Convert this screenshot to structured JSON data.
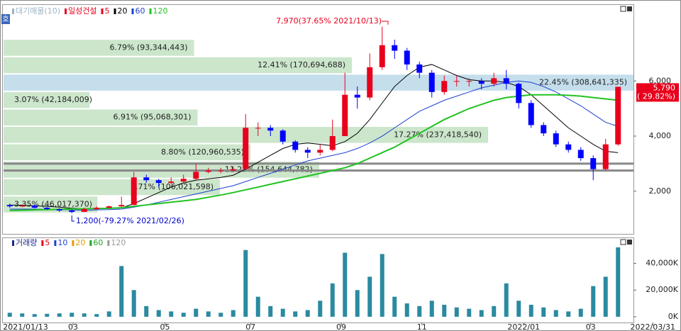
{
  "chart_data": [
    {
      "type": "candlestick",
      "icon_label": "호",
      "legend": [
        {
          "label": "대기매물(10)",
          "color": "#9cb4c4"
        },
        {
          "label": "일성건설",
          "color": "#e8001c"
        },
        {
          "label": "5",
          "color": "#e8001c"
        },
        {
          "label": "20",
          "color": "#000000"
        },
        {
          "label": "60",
          "color": "#1f3fd0"
        },
        {
          "label": "120",
          "color": "#22c322"
        }
      ],
      "categories": [
        null,
        null,
        null,
        null,
        null,
        null,
        null,
        null,
        null,
        null,
        null,
        null,
        null,
        null,
        null,
        null,
        null,
        null,
        null,
        null,
        null,
        null,
        null,
        null,
        null,
        null,
        null,
        null,
        null,
        null,
        null,
        null,
        null,
        null,
        null,
        null,
        null,
        null,
        null,
        null,
        null,
        null,
        null,
        null,
        null,
        null,
        null,
        null,
        null,
        null
      ],
      "candles": [
        [
          1500,
          1550,
          1400,
          1450
        ],
        [
          1450,
          1520,
          1420,
          1480
        ],
        [
          1480,
          1500,
          1380,
          1400
        ],
        [
          1400,
          1420,
          1320,
          1350
        ],
        [
          1350,
          1380,
          1250,
          1300
        ],
        [
          1300,
          1330,
          1200,
          1250
        ],
        [
          1250,
          1400,
          1240,
          1350
        ],
        [
          1350,
          1450,
          1330,
          1400
        ],
        [
          1400,
          1480,
          1380,
          1450
        ],
        [
          1450,
          1800,
          1420,
          1500
        ],
        [
          1500,
          2700,
          1500,
          2500
        ],
        [
          2500,
          2600,
          2300,
          2400
        ],
        [
          2400,
          2450,
          2150,
          2300
        ],
        [
          2300,
          2500,
          2250,
          2350
        ],
        [
          2350,
          2600,
          2300,
          2450
        ],
        [
          2450,
          3000,
          2400,
          2700
        ],
        [
          2700,
          2850,
          2650,
          2750
        ],
        [
          2750,
          2850,
          2650,
          2750
        ],
        [
          2750,
          2900,
          2700,
          2800
        ],
        [
          2800,
          4800,
          2800,
          4300
        ],
        [
          4300,
          4500,
          4000,
          4300
        ],
        [
          4300,
          4400,
          4000,
          4200
        ],
        [
          4200,
          4250,
          3700,
          3800
        ],
        [
          3800,
          3850,
          3400,
          3500
        ],
        [
          3500,
          3600,
          3200,
          3400
        ],
        [
          3400,
          3700,
          3300,
          3500
        ],
        [
          3500,
          4600,
          3450,
          4000
        ],
        [
          4000,
          6300,
          4000,
          5500
        ],
        [
          5500,
          5800,
          5000,
          5400
        ],
        [
          5400,
          7000,
          5300,
          6500
        ],
        [
          6500,
          7970,
          6400,
          7300
        ],
        [
          7300,
          7500,
          6800,
          7100
        ],
        [
          7100,
          7200,
          6400,
          6600
        ],
        [
          6600,
          6700,
          6100,
          6300
        ],
        [
          6300,
          6400,
          5400,
          5600
        ],
        [
          5600,
          6200,
          5500,
          6000
        ],
        [
          6000,
          6200,
          5800,
          6000
        ],
        [
          6000,
          6100,
          5800,
          6000
        ],
        [
          6000,
          6100,
          5700,
          5900
        ],
        [
          5900,
          6300,
          5800,
          6100
        ],
        [
          6100,
          6400,
          5700,
          5900
        ],
        [
          5900,
          5950,
          5000,
          5200
        ],
        [
          5200,
          5300,
          4300,
          4400
        ],
        [
          4400,
          4500,
          4000,
          4100
        ],
        [
          4100,
          4200,
          3600,
          3700
        ],
        [
          3700,
          3800,
          3400,
          3500
        ],
        [
          3500,
          3600,
          3100,
          3200
        ],
        [
          3200,
          3300,
          2400,
          2800
        ],
        [
          2800,
          3900,
          2750,
          3700
        ],
        [
          3700,
          5790,
          3650,
          5790
        ]
      ],
      "up_color": "#e8001c",
      "down_color": "#0000ff",
      "series": [
        {
          "color": "#000000",
          "values": [
            1500,
            1490,
            1470,
            1450,
            1420,
            1380,
            1360,
            1360,
            1370,
            1390,
            1550,
            1750,
            1950,
            2150,
            2300,
            2400,
            2450,
            2500,
            2580,
            2800,
            3050,
            3300,
            3550,
            3700,
            3750,
            3700,
            3650,
            3800,
            4100,
            4600,
            5200,
            5800,
            6200,
            6500,
            6600,
            6400,
            6200,
            6050,
            6000,
            6000,
            5950,
            5800,
            5500,
            5100,
            4700,
            4300,
            4000,
            3700,
            3450,
            3400
          ]
        },
        {
          "color": "#1f3fd0",
          "values": [
            1350,
            1350,
            1350,
            1340,
            1330,
            1320,
            1310,
            1320,
            1330,
            1350,
            1420,
            1500,
            1600,
            1700,
            1800,
            1900,
            2000,
            2100,
            2200,
            2350,
            2500,
            2650,
            2800,
            2950,
            3100,
            3200,
            3300,
            3400,
            3550,
            3750,
            4000,
            4300,
            4600,
            4900,
            5100,
            5300,
            5450,
            5600,
            5750,
            5850,
            5950,
            6000,
            5950,
            5800,
            5600,
            5350,
            5100,
            4800,
            4500,
            4350
          ]
        },
        {
          "color": "#22c322",
          "values": [
            1300,
            1310,
            1320,
            1330,
            1340,
            1350,
            1360,
            1370,
            1380,
            1400,
            1450,
            1500,
            1550,
            1600,
            1650,
            1700,
            1780,
            1860,
            1950,
            2050,
            2150,
            2250,
            2350,
            2450,
            2550,
            2650,
            2750,
            2850,
            3000,
            3200,
            3400,
            3600,
            3850,
            4100,
            4350,
            4600,
            4800,
            5000,
            5150,
            5300,
            5400,
            5450,
            5500,
            5500,
            5500,
            5480,
            5450,
            5400,
            5350,
            5300
          ]
        }
      ],
      "profile": {
        "bins": [
          1200,
          1832,
          2464,
          3096,
          3728,
          4360,
          4992,
          5624,
          6256,
          6888,
          7520
        ],
        "values": [
          46017370,
          106021598,
          154644782,
          120960535,
          237418540,
          95068301,
          42184009,
          308641335,
          170694688,
          93344443
        ],
        "value_labels": [
          "3.35% (46,017,370)",
          "7.71% (106,021,598)",
          "11.25% (154,644,782)",
          "8.80% (120,960,535)",
          "17.27% (237,418,540)",
          "6.91% (95,068,301)",
          "3.07% (42,184,009)",
          "22.45% (308,641,335)",
          "12.41% (170,694,688)",
          "6.79% (93,344,443)"
        ],
        "color": "#cce6cc",
        "highlight_color": "#c4deec"
      },
      "hlines": [
        3000,
        2750
      ],
      "annotations": [
        {
          "text": "7,970(37.65% 2021/10/13)",
          "color": "#e8001c"
        },
        {
          "text": "1,200(-79.27% 2021/02/26)",
          "color": "#0000cc"
        }
      ],
      "last_price": {
        "label": "5,790",
        "change_label": "( 29.82%)",
        "value": 5790
      },
      "ylim": [
        450,
        8760
      ],
      "yticks": [
        {
          "value": 2000,
          "label": "2,000"
        },
        {
          "value": 4000,
          "label": "4,000"
        },
        {
          "value": 6000,
          "label": "6,000"
        }
      ]
    },
    {
      "type": "bar",
      "legend": [
        {
          "label": "거래량",
          "color": "#1a2a8a"
        },
        {
          "label": "5",
          "color": "#e8001c"
        },
        {
          "label": "10",
          "color": "#1f3fd0"
        },
        {
          "label": "20",
          "color": "#e89a00"
        },
        {
          "label": "60",
          "color": "#22a322"
        },
        {
          "label": "120",
          "color": "#999999"
        }
      ],
      "values": [
        3000,
        2500,
        2000,
        2200,
        2500,
        3000,
        2500,
        2000,
        4000,
        38000,
        20000,
        8000,
        5000,
        4000,
        3000,
        6000,
        4000,
        3000,
        5000,
        50000,
        15000,
        8000,
        6000,
        4000,
        5000,
        12000,
        25000,
        48000,
        20000,
        30000,
        47000,
        15000,
        10000,
        8000,
        12000,
        9000,
        7000,
        6000,
        5000,
        8000,
        25000,
        12000,
        9000,
        7000,
        5000,
        4000,
        6000,
        23000,
        30000,
        52000
      ],
      "color": "#2a8aa0",
      "ylim": [
        -4300,
        58900
      ],
      "yticks": [
        {
          "value": 0,
          "label": "0K"
        },
        {
          "value": 20000,
          "label": "20,000K"
        },
        {
          "value": 40000,
          "label": "40,000K"
        }
      ],
      "xticks": [
        {
          "value": 0,
          "label": "2021/01/13"
        },
        {
          "value": 5.1,
          "label": "03"
        },
        {
          "value": 12.5,
          "label": "05"
        },
        {
          "value": 19.4,
          "label": "07"
        },
        {
          "value": 26.7,
          "label": "09"
        },
        {
          "value": 33.2,
          "label": "11"
        },
        {
          "value": 41.4,
          "label": "2022/01"
        },
        {
          "value": 46.8,
          "label": "03"
        },
        {
          "value": 51.8,
          "label": "2022/03/31"
        }
      ]
    }
  ]
}
